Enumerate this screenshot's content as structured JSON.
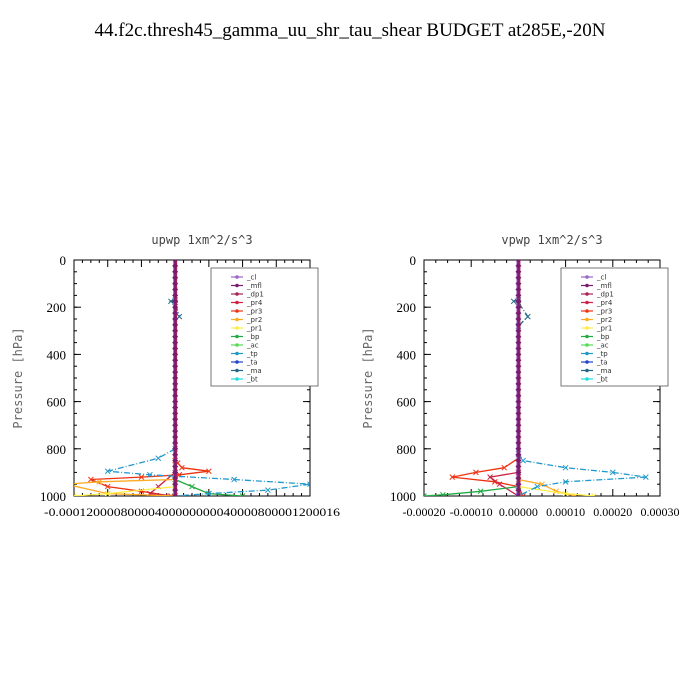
{
  "title": "44.f2c.thresh45_gamma_uu_shr_tau_shear  BUDGET at285E,-20N",
  "legend_entries": [
    {
      "name": "_cl",
      "color": "#9966cc"
    },
    {
      "name": "_mfl",
      "color": "#7a1b6e"
    },
    {
      "name": "_dp1",
      "color": "#aa2255"
    },
    {
      "name": "_pr4",
      "color": "#cc2244"
    },
    {
      "name": "_pr3",
      "color": "#ee3311"
    },
    {
      "name": "_pr2",
      "color": "#ffaa22"
    },
    {
      "name": "_pr1",
      "color": "#ffee44"
    },
    {
      "name": "_bp",
      "color": "#22aa44"
    },
    {
      "name": "_ac",
      "color": "#55dd55"
    },
    {
      "name": "_tp",
      "color": "#2299cc"
    },
    {
      "name": "_ta",
      "color": "#2244cc"
    },
    {
      "name": "_ma",
      "color": "#226688"
    },
    {
      "name": "_bt",
      "color": "#22dddd"
    }
  ],
  "chart_data": [
    {
      "type": "line",
      "title": "upwp   1xm^2/s^3",
      "ylabel": "Pressure [hPa]",
      "xlim": [
        -0.00012,
        0.00016
      ],
      "ylim": [
        1000,
        0
      ],
      "y_ticks": [
        "0",
        "200",
        "400",
        "600",
        "800",
        "1000"
      ],
      "x_ticks": [
        "-0.00012",
        "-0.00008",
        "-0.00004",
        "0.00000",
        "0.00004",
        "0.00008",
        "0.00012",
        "0.00016"
      ],
      "x_tick_labels_printed": "-0.00012000080000400000000040000800001200016",
      "legend": "top-right",
      "series": [
        {
          "name": "_pr3",
          "values": [
            [
              0,
              850
            ],
            [
              3e-06,
              860
            ],
            [
              8e-06,
              880
            ],
            [
              4e-05,
              895
            ],
            [
              5e-06,
              910
            ],
            [
              -4e-05,
              920
            ],
            [
              -0.0001,
              930
            ],
            [
              -8e-05,
              960
            ],
            [
              -4e-05,
              980
            ],
            [
              -5e-06,
              1000
            ]
          ]
        },
        {
          "name": "_pr4",
          "values": [
            [
              0,
              900
            ],
            [
              -2e-05,
              960
            ],
            [
              -3e-05,
              990
            ],
            [
              0,
              1000
            ]
          ]
        },
        {
          "name": "_pr2",
          "values": [
            [
              0,
              930
            ],
            [
              -9e-05,
              940
            ],
            [
              -0.00013,
              950
            ],
            [
              -8e-05,
              990
            ],
            [
              0,
              1000
            ]
          ]
        },
        {
          "name": "_pr1",
          "values": [
            [
              0,
              960
            ],
            [
              -8e-05,
              990
            ],
            [
              -0.00012,
              1000
            ]
          ]
        },
        {
          "name": "_bp",
          "values": [
            [
              0,
              930
            ],
            [
              2e-05,
              960
            ],
            [
              4e-05,
              990
            ],
            [
              8e-05,
              1000
            ]
          ]
        },
        {
          "name": "_tp",
          "values": [
            [
              0,
              800
            ],
            [
              -2e-05,
              840
            ],
            [
              -8e-05,
              895
            ],
            [
              -3e-05,
              910
            ],
            [
              7e-05,
              930
            ],
            [
              0.00016,
              950
            ],
            [
              0.00011,
              975
            ],
            [
              4e-05,
              990
            ],
            [
              0,
              1000
            ]
          ]
        },
        {
          "name": "_ma",
          "values": [
            [
              0,
              170
            ],
            [
              -5e-06,
              175
            ],
            [
              0,
              180
            ],
            [
              5e-06,
              240
            ]
          ]
        }
      ]
    },
    {
      "type": "line",
      "title": "vpwp   1xm^2/s^3",
      "ylabel": "Pressure [hPa]",
      "xlim": [
        -0.0002,
        0.0003
      ],
      "ylim": [
        1000,
        0
      ],
      "y_ticks": [
        "0",
        "200",
        "400",
        "600",
        "800",
        "1000"
      ],
      "x_ticks": [
        "-0.00020",
        "-0.00010",
        "0.00000",
        "0.00010",
        "0.00020",
        "0.00030"
      ],
      "legend": "top-right",
      "series": [
        {
          "name": "_pr3",
          "values": [
            [
              0,
              840
            ],
            [
              -3e-05,
              880
            ],
            [
              -9e-05,
              900
            ],
            [
              -0.00014,
              920
            ],
            [
              -5e-05,
              940
            ],
            [
              0,
              960
            ],
            [
              1e-05,
              1000
            ]
          ]
        },
        {
          "name": "_pr4",
          "values": [
            [
              0,
              900
            ],
            [
              -6e-05,
              920
            ],
            [
              -4e-05,
              950
            ],
            [
              0,
              1000
            ]
          ]
        },
        {
          "name": "_pr2",
          "values": [
            [
              0,
              930
            ],
            [
              5e-05,
              950
            ],
            [
              8e-05,
              980
            ],
            [
              0.00012,
              1000
            ]
          ]
        },
        {
          "name": "_pr1",
          "values": [
            [
              0,
              960
            ],
            [
              0.0001,
              990
            ],
            [
              0.00016,
              1000
            ]
          ]
        },
        {
          "name": "_bp",
          "values": [
            [
              0,
              960
            ],
            [
              -8e-05,
              980
            ],
            [
              -0.00016,
              995
            ],
            [
              -0.0002,
              1000
            ]
          ]
        },
        {
          "name": "_tp",
          "values": [
            [
              0,
              820
            ],
            [
              1e-05,
              850
            ],
            [
              0.0001,
              880
            ],
            [
              0.0002,
              900
            ],
            [
              0.00027,
              920
            ],
            [
              0.0001,
              940
            ],
            [
              4e-05,
              960
            ],
            [
              0,
              1000
            ]
          ]
        },
        {
          "name": "_ma",
          "values": [
            [
              0,
              170
            ],
            [
              -1e-05,
              175
            ],
            [
              0,
              180
            ],
            [
              2e-05,
              240
            ],
            [
              0,
              280
            ]
          ]
        }
      ]
    }
  ]
}
